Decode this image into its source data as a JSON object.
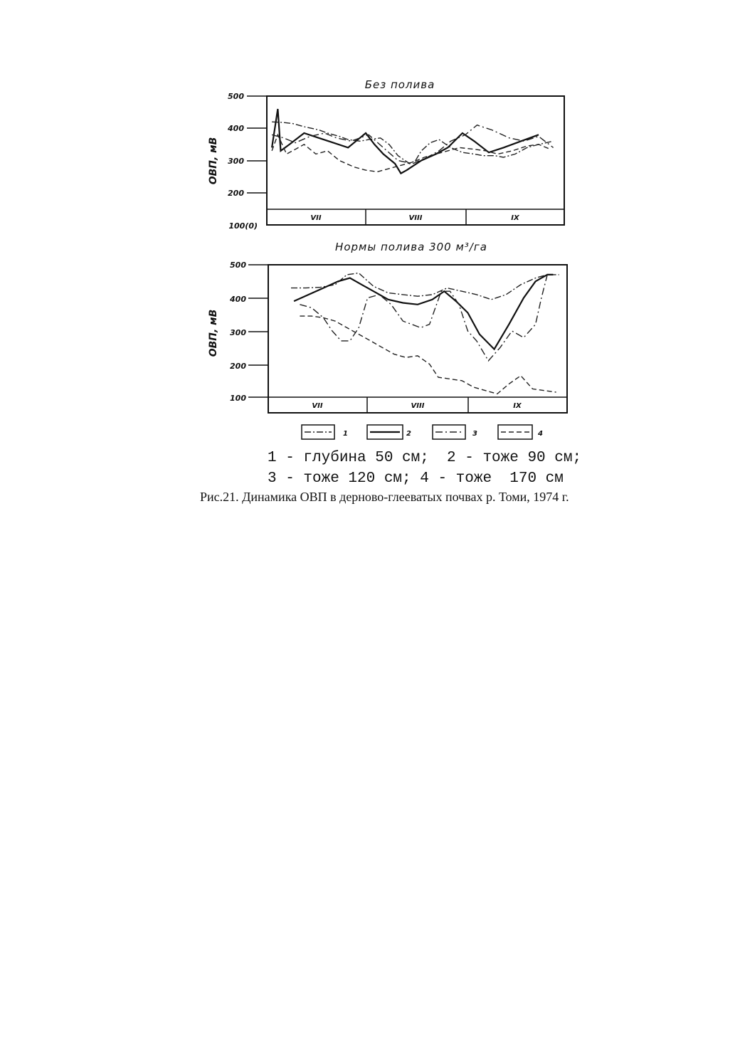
{
  "chart_data": [
    {
      "type": "line",
      "title": "Без полива",
      "ylabel": "ОВП, мВ",
      "ylim": [
        100,
        500
      ],
      "yticks": [
        "500",
        "400",
        "300",
        "200"
      ],
      "y_origin_label": "100(0)",
      "months": [
        "VII",
        "VIII",
        "IX"
      ],
      "x_domain": [
        0,
        100
      ],
      "grid": false,
      "series": [
        {
          "name": "1",
          "style": "s1",
          "x": [
            1,
            5,
            8,
            12,
            17,
            20,
            24,
            27,
            31,
            34,
            38,
            41,
            44,
            48,
            50,
            52,
            55,
            58,
            62,
            66,
            70,
            73,
            77,
            80,
            84,
            88,
            92,
            97
          ],
          "y": [
            420,
            418,
            415,
            405,
            395,
            385,
            375,
            365,
            360,
            365,
            370,
            350,
            315,
            290,
            300,
            330,
            355,
            365,
            340,
            325,
            320,
            315,
            315,
            310,
            320,
            340,
            350,
            360
          ]
        },
        {
          "name": "2",
          "style": "s2",
          "x": [
            1,
            3,
            4,
            7,
            12,
            17,
            22,
            27,
            33,
            36,
            39,
            43,
            45,
            47,
            52,
            57,
            61,
            66,
            70,
            75,
            80,
            86,
            92
          ],
          "y": [
            340,
            460,
            330,
            350,
            385,
            370,
            355,
            340,
            385,
            350,
            320,
            290,
            260,
            270,
            300,
            320,
            340,
            385,
            360,
            325,
            340,
            360,
            380
          ]
        },
        {
          "name": "3",
          "style": "s3",
          "x": [
            1,
            5,
            9,
            14,
            19,
            23,
            28,
            34,
            39,
            44,
            49,
            54,
            58,
            62,
            67,
            71,
            76,
            82,
            87,
            92,
            97
          ],
          "y": [
            380,
            370,
            355,
            375,
            385,
            370,
            360,
            380,
            340,
            300,
            290,
            310,
            330,
            360,
            380,
            410,
            395,
            370,
            360,
            375,
            340
          ]
        },
        {
          "name": "4",
          "style": "s4",
          "x": [
            1,
            3,
            6,
            9,
            12,
            16,
            20,
            24,
            29,
            33,
            37,
            41,
            45,
            49,
            53,
            57,
            61,
            65,
            70,
            74,
            78,
            83,
            88,
            92,
            96
          ],
          "y": [
            330,
            380,
            320,
            335,
            350,
            320,
            330,
            300,
            280,
            270,
            265,
            275,
            285,
            295,
            310,
            320,
            330,
            340,
            335,
            330,
            320,
            330,
            345,
            350,
            335
          ]
        }
      ]
    },
    {
      "type": "line",
      "title": "Нормы полива  300 м³/га",
      "ylabel": "ОВП, мВ",
      "ylim": [
        100,
        500
      ],
      "yticks": [
        "500",
        "400",
        "300",
        "200",
        "100"
      ],
      "months": [
        "VII",
        "VIII",
        "IX"
      ],
      "x_domain": [
        0,
        100
      ],
      "grid": false,
      "series": [
        {
          "name": "1",
          "style": "s1",
          "x": [
            7,
            12,
            17,
            22,
            26,
            30,
            35,
            40,
            45,
            50,
            55,
            60,
            65,
            70,
            75,
            80,
            85,
            90,
            94,
            98
          ],
          "y": [
            430,
            430,
            432,
            440,
            470,
            475,
            435,
            415,
            410,
            405,
            410,
            430,
            420,
            410,
            395,
            410,
            440,
            460,
            470,
            470
          ]
        },
        {
          "name": "2",
          "style": "s2",
          "x": [
            8,
            13,
            18,
            23,
            27,
            31,
            35,
            40,
            45,
            50,
            55,
            59,
            63,
            67,
            71,
            76,
            81,
            86,
            90,
            94,
            96
          ],
          "y": [
            390,
            410,
            430,
            450,
            460,
            440,
            420,
            395,
            385,
            380,
            395,
            420,
            390,
            355,
            290,
            245,
            320,
            400,
            450,
            470,
            470
          ]
        },
        {
          "name": "3",
          "style": "s3",
          "x": [
            10,
            14,
            18,
            21,
            24,
            27,
            30,
            33,
            37,
            41,
            45,
            48,
            51,
            54,
            58,
            61,
            64,
            67,
            70,
            74,
            78,
            82,
            86,
            90,
            92,
            94
          ],
          "y": [
            380,
            370,
            340,
            300,
            270,
            270,
            310,
            400,
            410,
            380,
            330,
            320,
            310,
            320,
            420,
            420,
            380,
            300,
            270,
            210,
            250,
            300,
            280,
            320,
            400,
            470
          ]
        },
        {
          "name": "4",
          "style": "s4",
          "x": [
            10,
            14,
            18,
            22,
            26,
            30,
            34,
            38,
            42,
            46,
            50,
            54,
            57,
            61,
            65,
            69,
            73,
            77,
            81,
            85,
            89,
            93,
            97
          ],
          "y": [
            345,
            345,
            340,
            330,
            310,
            290,
            270,
            250,
            230,
            220,
            225,
            200,
            160,
            155,
            150,
            130,
            120,
            110,
            140,
            165,
            125,
            120,
            115
          ]
        }
      ]
    }
  ],
  "legend": {
    "items": [
      {
        "label": "1",
        "style": "s1"
      },
      {
        "label": "2",
        "style": "s2"
      },
      {
        "label": "3",
        "style": "s3"
      },
      {
        "label": "4",
        "style": "s4"
      }
    ],
    "line1": "1 - глубина 50 см;  2 - тоже 90 см;",
    "line2": "3 - тоже 120 см; 4 - тоже  170 см"
  },
  "caption": "Рис.21. Динамика ОВП в дерново-глееватых почвах р. Томи, 1974 г."
}
